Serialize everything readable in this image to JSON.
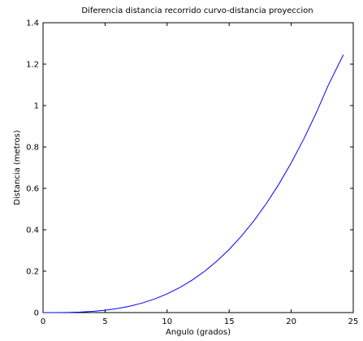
{
  "chart_data": {
    "type": "line",
    "title": "Diferencia distancia recorrido curvo-distancia proyeccion",
    "xlabel": "Angulo (grados)",
    "ylabel": "Distancia (metros)",
    "xlim": [
      0,
      25
    ],
    "ylim": [
      0,
      1.4
    ],
    "x_ticks": [
      0,
      5,
      10,
      15,
      20,
      25
    ],
    "x_tick_labels": [
      "0",
      "5",
      "10",
      "15",
      "20",
      "25"
    ],
    "y_ticks": [
      0,
      0.2,
      0.4,
      0.6,
      0.8,
      1.0,
      1.2,
      1.4
    ],
    "y_tick_labels": [
      "0",
      "0.2",
      "0.4",
      "0.6",
      "0.8",
      "1",
      "1.2",
      "1.4"
    ],
    "grid": false,
    "series": [
      {
        "color": "#0000ff",
        "x": [
          0,
          1,
          2,
          3,
          4,
          5,
          6,
          7,
          8,
          9,
          10,
          11,
          12,
          13,
          14,
          15,
          16,
          17,
          18,
          19,
          20,
          21,
          22,
          23,
          24.2
        ],
        "y": [
          0,
          0.0001,
          0.0007,
          0.0024,
          0.0058,
          0.0113,
          0.0195,
          0.031,
          0.0463,
          0.0659,
          0.0904,
          0.1203,
          0.1561,
          0.1985,
          0.248,
          0.305,
          0.3702,
          0.444,
          0.527,
          0.6199,
          0.723,
          0.837,
          0.9624,
          1.0998,
          1.245
        ]
      }
    ]
  }
}
